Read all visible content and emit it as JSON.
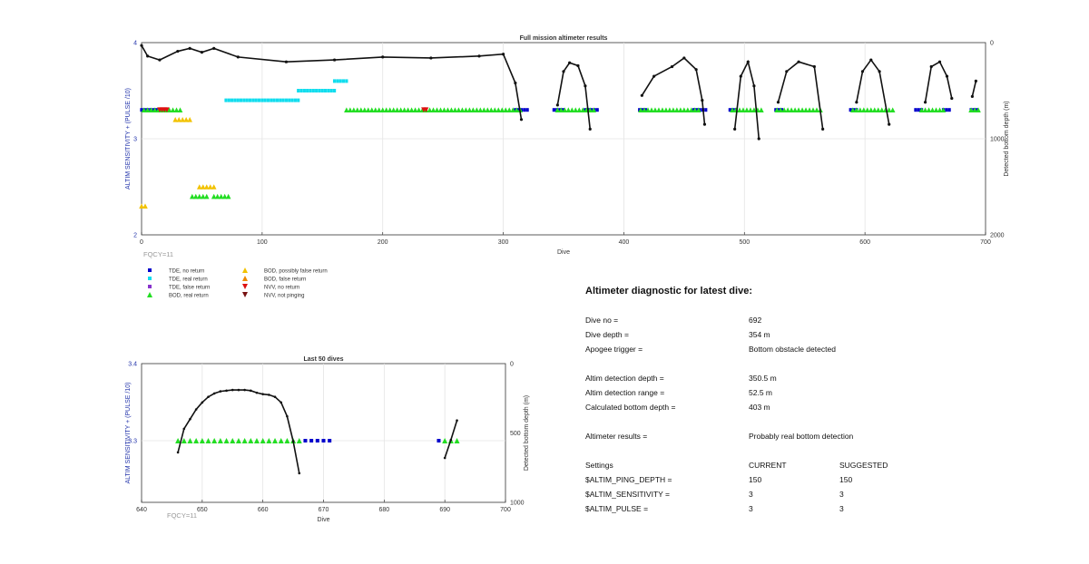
{
  "chart_data": [
    {
      "type": "scatter",
      "title": "Full mission altimeter results",
      "xlabel": "Dive",
      "ylabel": "ALTIM SENSITIVITY + (PULSE /10)",
      "y2label": "Detected bottom depth (m)",
      "xlim": [
        0,
        700
      ],
      "ylim": [
        2,
        4
      ],
      "y2lim": [
        2000,
        0
      ],
      "xticks": [
        0,
        100,
        200,
        300,
        400,
        500,
        600,
        700
      ],
      "yticks": [
        2,
        3,
        4
      ],
      "y2ticks": [
        0,
        1000,
        2000
      ],
      "grid": true,
      "annotation": "FQCY=11",
      "segments": {
        "tde_no_return": [
          [
            0,
            22,
            3.3
          ],
          [
            310,
            322,
            3.3
          ],
          [
            342,
            350,
            3.3
          ],
          [
            368,
            378,
            3.3
          ],
          [
            413,
            420,
            3.3
          ],
          [
            458,
            470,
            3.3
          ],
          [
            488,
            495,
            3.3
          ],
          [
            526,
            532,
            3.3
          ],
          [
            588,
            594,
            3.3
          ],
          [
            642,
            648,
            3.3
          ],
          [
            665,
            672,
            3.3
          ],
          [
            688,
            693,
            3.3
          ]
        ],
        "tde_real_return": [
          [
            70,
            130,
            3.4
          ],
          [
            130,
            160,
            3.5
          ],
          [
            160,
            172,
            3.6
          ]
        ],
        "bod_real_return": [
          [
            2,
            32,
            3.3
          ],
          [
            42,
            54,
            2.4
          ],
          [
            60,
            72,
            2.4
          ],
          [
            170,
            315,
            3.3
          ],
          [
            345,
            375,
            3.3
          ],
          [
            414,
            462,
            3.3
          ],
          [
            490,
            515,
            3.3
          ],
          [
            527,
            565,
            3.3
          ],
          [
            590,
            625,
            3.3
          ],
          [
            647,
            665,
            3.3
          ],
          [
            688,
            694,
            3.3
          ]
        ],
        "bod_possibly_false": [
          [
            28,
            42,
            3.2
          ],
          [
            48,
            62,
            2.5
          ],
          [
            0,
            4,
            2.3
          ]
        ],
        "nvv_no_return": [
          [
            15,
            22,
            3.3
          ],
          [
            234,
            236,
            3.3
          ]
        ]
      },
      "depth_profile": {
        "series": [
          {
            "name": "early",
            "points": [
              [
                0,
                30
              ],
              [
                5,
                140
              ],
              [
                15,
                180
              ],
              [
                30,
                90
              ],
              [
                40,
                60
              ],
              [
                50,
                100
              ],
              [
                60,
                60
              ],
              [
                80,
                150
              ],
              [
                120,
                200
              ],
              [
                160,
                180
              ],
              [
                200,
                150
              ],
              [
                240,
                160
              ],
              [
                280,
                140
              ],
              [
                300,
                120
              ],
              [
                310,
                420
              ],
              [
                315,
                800
              ]
            ]
          },
          {
            "name": "d1",
            "points": [
              [
                345,
                650
              ],
              [
                350,
                300
              ],
              [
                355,
                210
              ],
              [
                362,
                240
              ],
              [
                368,
                450
              ],
              [
                372,
                900
              ]
            ]
          },
          {
            "name": "d2",
            "points": [
              [
                415,
                550
              ],
              [
                425,
                350
              ],
              [
                440,
                250
              ],
              [
                450,
                160
              ],
              [
                460,
                280
              ],
              [
                465,
                600
              ],
              [
                467,
                850
              ]
            ]
          },
          {
            "name": "d3",
            "points": [
              [
                492,
                900
              ],
              [
                497,
                350
              ],
              [
                503,
                200
              ],
              [
                508,
                450
              ],
              [
                512,
                1000
              ]
            ]
          },
          {
            "name": "d4",
            "points": [
              [
                528,
                620
              ],
              [
                535,
                300
              ],
              [
                545,
                200
              ],
              [
                558,
                250
              ],
              [
                565,
                900
              ]
            ]
          },
          {
            "name": "d5",
            "points": [
              [
                593,
                620
              ],
              [
                598,
                300
              ],
              [
                605,
                180
              ],
              [
                612,
                300
              ],
              [
                620,
                850
              ]
            ]
          },
          {
            "name": "d6",
            "points": [
              [
                650,
                620
              ],
              [
                655,
                250
              ],
              [
                662,
                200
              ],
              [
                668,
                350
              ],
              [
                672,
                580
              ]
            ]
          },
          {
            "name": "d7",
            "points": [
              [
                689,
                560
              ],
              [
                692,
                400
              ]
            ]
          }
        ]
      }
    },
    {
      "type": "scatter",
      "title": "Last 50 dives",
      "xlabel": "Dive",
      "ylabel": "ALTIM SENSITIVITY + (PULSE /10)",
      "y2label": "Detected bottom depth (m)",
      "xlim": [
        640,
        700
      ],
      "ylim": [
        3.22,
        3.4
      ],
      "y2lim": [
        1000,
        0
      ],
      "xticks": [
        640,
        650,
        660,
        670,
        680,
        690,
        700
      ],
      "yticks": [
        3.3,
        3.4
      ],
      "y2ticks": [
        0,
        500,
        1000
      ],
      "grid": true,
      "annotation": "FQCY=11",
      "bod_real_return": [
        [
          646,
          3.3
        ],
        [
          647,
          3.3
        ],
        [
          648,
          3.3
        ],
        [
          649,
          3.3
        ],
        [
          650,
          3.3
        ],
        [
          651,
          3.3
        ],
        [
          652,
          3.3
        ],
        [
          653,
          3.3
        ],
        [
          654,
          3.3
        ],
        [
          655,
          3.3
        ],
        [
          656,
          3.3
        ],
        [
          657,
          3.3
        ],
        [
          658,
          3.3
        ],
        [
          659,
          3.3
        ],
        [
          660,
          3.3
        ],
        [
          661,
          3.3
        ],
        [
          662,
          3.3
        ],
        [
          663,
          3.3
        ],
        [
          664,
          3.3
        ],
        [
          665,
          3.3
        ],
        [
          666,
          3.3
        ],
        [
          690,
          3.3
        ],
        [
          691,
          3.3
        ],
        [
          692,
          3.3
        ]
      ],
      "tde_no_return": [
        [
          667,
          3.3
        ],
        [
          668,
          3.3
        ],
        [
          669,
          3.3
        ],
        [
          670,
          3.3
        ],
        [
          671,
          3.3
        ],
        [
          689,
          3.3
        ]
      ],
      "depth_profile": [
        [
          [
            646,
            640
          ],
          [
            647,
            470
          ],
          [
            648,
            400
          ],
          [
            649,
            330
          ],
          [
            650,
            280
          ],
          [
            651,
            240
          ],
          [
            652,
            215
          ],
          [
            653,
            200
          ],
          [
            654,
            195
          ],
          [
            655,
            190
          ],
          [
            656,
            190
          ],
          [
            657,
            190
          ],
          [
            658,
            195
          ],
          [
            659,
            210
          ],
          [
            660,
            220
          ],
          [
            661,
            225
          ],
          [
            662,
            240
          ],
          [
            663,
            280
          ],
          [
            664,
            380
          ],
          [
            665,
            560
          ],
          [
            666,
            790
          ]
        ],
        [
          [
            690,
            680
          ],
          [
            691,
            550
          ],
          [
            692,
            410
          ]
        ]
      ]
    }
  ],
  "legend": [
    {
      "label": "TDE, no return",
      "marker": "square",
      "color": "#0000cc"
    },
    {
      "label": "TDE, real return",
      "marker": "square",
      "color": "#11ddee"
    },
    {
      "label": "TDE, false return",
      "marker": "square",
      "color": "#8833cc"
    },
    {
      "label": "BOD, real return",
      "marker": "triangle-up",
      "color": "#22dd22"
    },
    {
      "label": "BOD, possibly false return",
      "marker": "triangle-up",
      "color": "#f2c200"
    },
    {
      "label": "BOD, false return",
      "marker": "triangle-up",
      "color": "#ee8800"
    },
    {
      "label": "NVV, no return",
      "marker": "triangle-down",
      "color": "#dd1111"
    },
    {
      "label": "NVV, not pinging",
      "marker": "triangle-down",
      "color": "#771111"
    }
  ],
  "diagnostic": {
    "title": "Altimeter diagnostic for latest dive:",
    "rows": [
      {
        "label": "Dive no =",
        "value": "692"
      },
      {
        "label": "Dive depth =",
        "value": "354 m"
      },
      {
        "label": "Apogee trigger =",
        "value": "Bottom obstacle detected"
      },
      {
        "label": "Altim detection depth =",
        "value": "350.5 m"
      },
      {
        "label": "Altim detection range =",
        "value": "52.5 m"
      },
      {
        "label": "Calculated bottom depth =",
        "value": "403 m"
      },
      {
        "label": "Altimeter results =",
        "value": "Probably real bottom detection"
      }
    ],
    "settings": {
      "header": {
        "label": "Settings",
        "current": "CURRENT",
        "suggested": "SUGGESTED"
      },
      "rows": [
        {
          "label": "$ALTIM_PING_DEPTH =",
          "current": "150",
          "suggested": "150"
        },
        {
          "label": "$ALTIM_SENSITIVITY =",
          "current": "3",
          "suggested": "3"
        },
        {
          "label": "$ALTIM_PULSE =",
          "current": "3",
          "suggested": "3"
        }
      ]
    }
  }
}
